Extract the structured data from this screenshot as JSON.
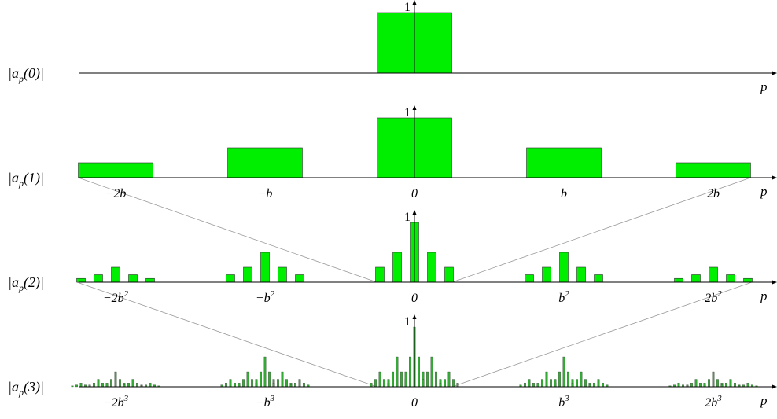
{
  "colors": {
    "bar_fill": "#00ee00",
    "bar_stroke": "#333333",
    "thin_bar_fill": "#33aa33",
    "axis": "#000000",
    "projection": "#999999"
  },
  "axis_variable": "p",
  "peak_label": "1",
  "rows": [
    {
      "label": "|a",
      "sub": "p",
      "arg": "(0)|",
      "ticks": [],
      "bars": [
        {
          "pos": 0,
          "value": 1,
          "width": 1
        }
      ]
    },
    {
      "label": "|a",
      "sub": "p",
      "arg": "(1)|",
      "ticks": [
        {
          "pos": -2,
          "text": "−2",
          "base": "b",
          "sup": ""
        },
        {
          "pos": -1,
          "text": "−",
          "base": "b",
          "sup": ""
        },
        {
          "pos": 0,
          "text": "0",
          "base": "",
          "sup": ""
        },
        {
          "pos": 1,
          "text": "",
          "base": "b",
          "sup": ""
        },
        {
          "pos": 2,
          "text": "2",
          "base": "b",
          "sup": ""
        }
      ],
      "bars": [
        {
          "pos": -2,
          "value": 0.25,
          "width": 1
        },
        {
          "pos": -1,
          "value": 0.5,
          "width": 1
        },
        {
          "pos": 0,
          "value": 1,
          "width": 1
        },
        {
          "pos": 1,
          "value": 0.5,
          "width": 1
        },
        {
          "pos": 2,
          "value": 0.25,
          "width": 1
        }
      ]
    },
    {
      "label": "|a",
      "sub": "p",
      "arg": "(2)|",
      "ticks": [
        {
          "pos": -2,
          "text": "−2",
          "base": "b",
          "sup": "2"
        },
        {
          "pos": -1,
          "text": "−",
          "base": "b",
          "sup": "2"
        },
        {
          "pos": 0,
          "text": "0",
          "base": "",
          "sup": ""
        },
        {
          "pos": 1,
          "text": "",
          "base": "b",
          "sup": "2"
        },
        {
          "pos": 2,
          "text": "2",
          "base": "b",
          "sup": "2"
        }
      ]
    },
    {
      "label": "|a",
      "sub": "p",
      "arg": "(3)|",
      "ticks": [
        {
          "pos": -2,
          "text": "−2",
          "base": "b",
          "sup": "3"
        },
        {
          "pos": -1,
          "text": "−",
          "base": "b",
          "sup": "3"
        },
        {
          "pos": 0,
          "text": "0",
          "base": "",
          "sup": ""
        },
        {
          "pos": 1,
          "text": "",
          "base": "b",
          "sup": "3"
        },
        {
          "pos": 2,
          "text": "2",
          "base": "b",
          "sup": "3"
        }
      ]
    }
  ],
  "level_weights": [
    0.25,
    0.5,
    1,
    0.5,
    0.25
  ]
}
